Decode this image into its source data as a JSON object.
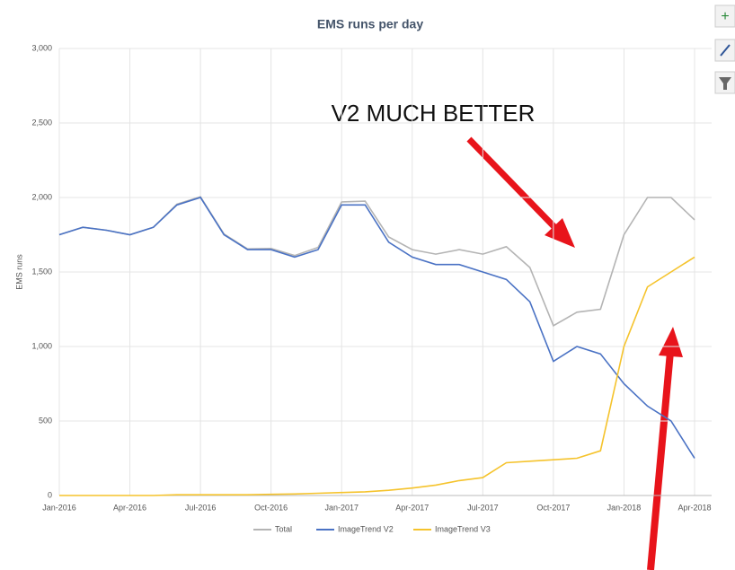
{
  "chart_data": {
    "type": "line",
    "title": "EMS runs per day",
    "y_label": "EMS runs",
    "annotation": "V2 MUCH BETTER",
    "categories": [
      "Jan-2016",
      null,
      null,
      "Apr-2016",
      null,
      null,
      "Jul-2016",
      null,
      null,
      "Oct-2016",
      null,
      null,
      "Jan-2017",
      null,
      null,
      "Apr-2017",
      null,
      null,
      "Jul-2017",
      null,
      null,
      "Oct-2017",
      null,
      null,
      "Jan-2018",
      null,
      null,
      "Apr-2018"
    ],
    "series": [
      {
        "name": "Total",
        "color": "#b4b4b4",
        "values": [
          1750,
          1800,
          1780,
          1750,
          1800,
          1955,
          2005,
          1755,
          1655,
          1658,
          1610,
          1665,
          1970,
          1975,
          1735,
          1650,
          1620,
          1650,
          1620,
          1670,
          1530,
          1140,
          1230,
          1250,
          1750,
          2000,
          2000,
          1850
        ]
      },
      {
        "name": "ImageTrend V2",
        "color": "#4a72c4",
        "values": [
          1750,
          1800,
          1780,
          1750,
          1800,
          1950,
          2000,
          1750,
          1650,
          1650,
          1600,
          1650,
          1950,
          1950,
          1700,
          1600,
          1550,
          1550,
          1500,
          1450,
          1300,
          900,
          1000,
          950,
          750,
          600,
          500,
          250
        ]
      },
      {
        "name": "ImageTrend V3",
        "color": "#f5c32c",
        "values": [
          0,
          0,
          0,
          0,
          0,
          5,
          5,
          5,
          5,
          8,
          10,
          15,
          20,
          25,
          35,
          50,
          70,
          100,
          120,
          220,
          230,
          240,
          250,
          300,
          1000,
          1400,
          1500,
          1600
        ]
      }
    ],
    "ylim": [
      0,
      3000
    ],
    "yticks": [
      0,
      500,
      {
        "value": 1000,
        "label": "1,000"
      },
      {
        "value": 1500,
        "label": "1,500"
      },
      {
        "value": 2000,
        "label": "2,000"
      },
      {
        "value": 2500,
        "label": "2,500"
      },
      {
        "value": 3000,
        "label": "3,000"
      }
    ],
    "grid": true,
    "legend": "bottom"
  }
}
